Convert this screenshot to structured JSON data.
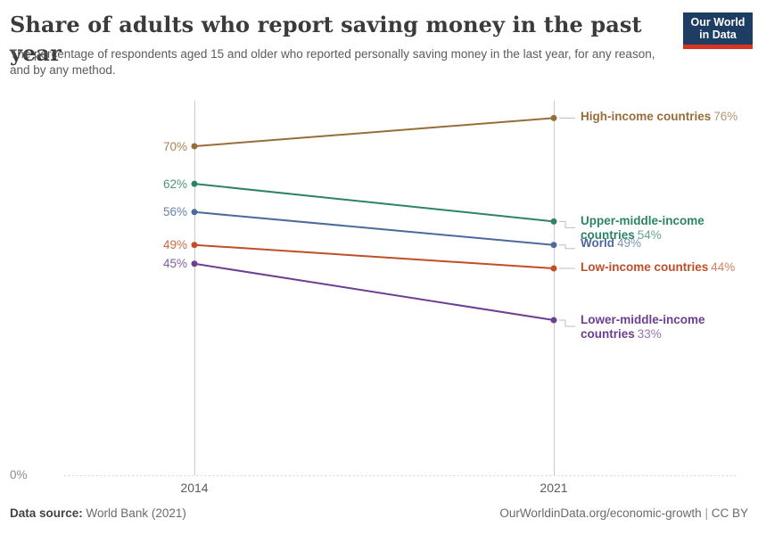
{
  "header": {
    "title": "Share of adults who report saving money in the past year",
    "subtitle": "The percentage of respondents aged 15 and older who reported personally saving money in the last year, for any reason, and by any method.",
    "logo": {
      "line1": "Our World",
      "line2": "in Data",
      "bg_color": "#1d3d63",
      "accent_color": "#d7351f"
    }
  },
  "chart_data": {
    "type": "line",
    "subtype": "slope",
    "x": [
      2014,
      2021
    ],
    "x_tick_labels": [
      "2014",
      "2021"
    ],
    "ylim": [
      0,
      80
    ],
    "y_zero_label": "0%",
    "grid": "dotted zero line only",
    "legend_position": "right end-of-line labels",
    "series": [
      {
        "name": "High-income countries",
        "values": [
          70,
          76
        ],
        "color": "#996d39",
        "start_label": "70%",
        "end_line1": "High-income countries",
        "end_value1": "76%",
        "end_line2": "",
        "end_value2": ""
      },
      {
        "name": "Upper-middle-income countries",
        "values": [
          62,
          54
        ],
        "color": "#2c8465",
        "start_label": "62%",
        "end_line1": "Upper-middle-income",
        "end_value1": "",
        "end_line2": "countries",
        "end_value2": "54%"
      },
      {
        "name": "World",
        "values": [
          56,
          49
        ],
        "color": "#4c6a9c",
        "start_label": "56%",
        "end_line1": "World",
        "end_value1": "49%",
        "end_line2": "",
        "end_value2": ""
      },
      {
        "name": "Low-income countries",
        "values": [
          49,
          44
        ],
        "color": "#c14e27",
        "start_label": "49%",
        "end_line1": "Low-income countries",
        "end_value1": "44%",
        "end_line2": "",
        "end_value2": ""
      },
      {
        "name": "Lower-middle-income countries",
        "values": [
          45,
          33
        ],
        "color": "#6d3e91",
        "start_label": "45%",
        "end_line1": "Lower-middle-income",
        "end_value1": "",
        "end_line2": "countries",
        "end_value2": "33%"
      }
    ]
  },
  "footer": {
    "source_label": "Data source:",
    "source_value": "World Bank (2021)",
    "site": "OurWorldinData.org/economic-growth",
    "separator": "|",
    "license": "CC BY"
  }
}
